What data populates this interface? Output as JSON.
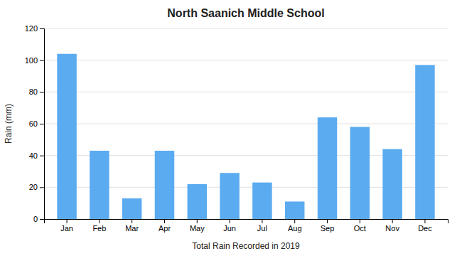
{
  "chart_data": {
    "type": "bar",
    "title": "North Saanich Middle School",
    "xlabel": "Total Rain Recorded in 2019",
    "ylabel": "Rain (mm)",
    "categories": [
      "Jan",
      "Feb",
      "Mar",
      "Apr",
      "May",
      "Jun",
      "Jul",
      "Aug",
      "Sep",
      "Oct",
      "Nov",
      "Dec"
    ],
    "values": [
      104,
      43,
      13,
      43,
      22,
      29,
      23,
      11,
      64,
      58,
      44,
      97
    ],
    "color": "#5aabf0",
    "ylim": [
      0,
      120
    ],
    "yticks": [
      0,
      20,
      40,
      60,
      80,
      100,
      120
    ],
    "grid": true
  }
}
